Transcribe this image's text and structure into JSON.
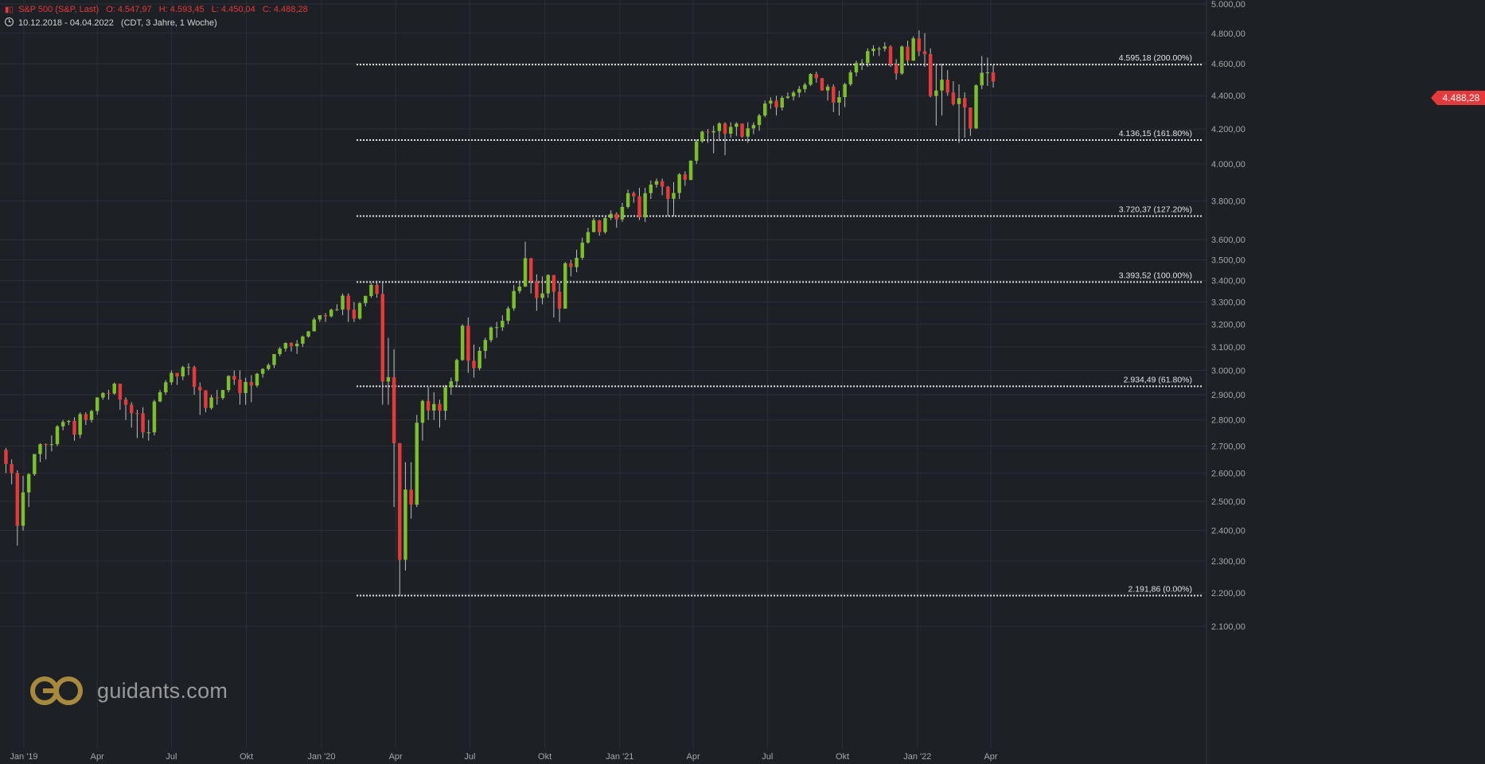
{
  "header": {
    "instrument": "S&P 500 (S&P, Last)",
    "open": "O: 4.547,97",
    "high": "H: 4.593,45",
    "low": "L: 4.450,04",
    "close": "C: 4.488,28",
    "range": "10.12.2018 - 04.04.2022",
    "settings": "(CDT, 3 Jahre, 1 Woche)"
  },
  "logo": {
    "text": "guidants.com"
  },
  "current_price": "4.488,28",
  "colors": {
    "up": "#7cbf2c",
    "down": "#e5393b",
    "background": "#1d2025",
    "grid": "#2c3036",
    "text": "#a6a6a6"
  },
  "chart_data": {
    "type": "candlestick",
    "title": "S&P 500 (S&P, Last)",
    "x_start": "2018-12-10",
    "x_end": "2022-04-04",
    "interval": "1 Woche",
    "yscale": "log",
    "ylim": [
      2100,
      5000
    ],
    "yticks": [
      2100,
      2200,
      2300,
      2400,
      2500,
      2600,
      2700,
      2800,
      2900,
      3000,
      3100,
      3200,
      3300,
      3400,
      3500,
      3600,
      3800,
      4000,
      4200,
      4400,
      4600,
      4800,
      5000
    ],
    "ytick_labels": [
      "2.100,00",
      "2.200,00",
      "2.300,00",
      "2.400,00",
      "2.500,00",
      "2.600,00",
      "2.700,00",
      "2.800,00",
      "2.900,00",
      "3.000,00",
      "3.100,00",
      "3.200,00",
      "3.300,00",
      "3.400,00",
      "3.500,00",
      "3.600,00",
      "3.800,00",
      "4.000,00",
      "4.200,00",
      "4.400,00",
      "4.600,00",
      "4.800,00",
      "5.000,00"
    ],
    "xticks": [
      "Jan '19",
      "Apr",
      "Jul",
      "Okt",
      "Jan '20",
      "Apr",
      "Jul",
      "Okt",
      "Jan '21",
      "Apr",
      "Jul",
      "Okt",
      "Jan '22",
      "Apr"
    ],
    "xtick_dates": [
      "2019-01-01",
      "2019-04-01",
      "2019-07-01",
      "2019-10-01",
      "2020-01-01",
      "2020-04-01",
      "2020-07-01",
      "2020-10-01",
      "2021-01-01",
      "2021-04-01",
      "2021-07-01",
      "2021-10-01",
      "2022-01-01",
      "2022-04-01"
    ],
    "fib_levels": [
      {
        "value": 4595.18,
        "label": "4.595,18 (200.00%)"
      },
      {
        "value": 4136.15,
        "label": "4.136,15 (161.80%)"
      },
      {
        "value": 3720.37,
        "label": "3.720,37 (127.20%)"
      },
      {
        "value": 3393.52,
        "label": "3.393,52 (100.00%)"
      },
      {
        "value": 2934.49,
        "label": "2.934,49 (61.80%)"
      },
      {
        "value": 2191.86,
        "label": "2.191,86 (0.00%)"
      }
    ],
    "fib_start_date": "2020-02-17",
    "closes": [
      2633,
      2600,
      2416,
      2531,
      2596,
      2670,
      2707,
      2706,
      2707,
      2775,
      2792,
      2796,
      2743,
      2823,
      2800,
      2835,
      2889,
      2907,
      2905,
      2945,
      2881,
      2860,
      2827,
      2826,
      2752,
      2752,
      2873,
      2910,
      2951,
      2990,
      2975,
      3014,
      3014,
      2932,
      2918,
      2847,
      2889,
      2887,
      2919,
      2977,
      2962,
      2907,
      2952,
      2938,
      2986,
      3006,
      3023,
      3069,
      3093,
      3117,
      3103,
      3114,
      3145,
      3168,
      3221,
      3240,
      3235,
      3265,
      3266,
      3330,
      3265,
      3225,
      3295,
      3328,
      3380,
      3338,
      2954,
      2972,
      2711,
      2304,
      2541,
      2488,
      2789,
      2875,
      2837,
      2863,
      2836,
      2930,
      2955,
      3044,
      3193,
      3041,
      3009,
      3083,
      3130,
      3185,
      3186,
      3215,
      3271,
      3351,
      3372,
      3508,
      3397,
      3319,
      3340,
      3427,
      3348,
      3270,
      3483,
      3465,
      3510,
      3585,
      3638,
      3699,
      3638,
      3710,
      3732,
      3703,
      3768,
      3841,
      3824,
      3714,
      3841,
      3887,
      3906,
      3876,
      3811,
      3842,
      3943,
      3913,
      4019,
      4128,
      4185,
      4180,
      4188,
      4233,
      4173,
      4213,
      4232,
      4156,
      4204,
      4224,
      4280,
      4352,
      4370,
      4328,
      4387,
      4395,
      4419,
      4441,
      4468,
      4535,
      4509,
      4432,
      4456,
      4358,
      4391,
      4471,
      4545,
      4605,
      4605,
      4682,
      4698,
      4698,
      4712,
      4595,
      4538,
      4712,
      4620,
      4766,
      4681,
      4663,
      4398,
      4432,
      4500,
      4419,
      4349,
      4385,
      4328,
      4204,
      4464,
      4543,
      4545,
      4488
    ],
    "highs": [
      2693,
      2650,
      2610,
      2590,
      2600,
      2670,
      2710,
      2710,
      2740,
      2780,
      2800,
      2800,
      2810,
      2830,
      2830,
      2840,
      2890,
      2910,
      2920,
      2950,
      2930,
      2890,
      2870,
      2840,
      2850,
      2800,
      2880,
      2920,
      2960,
      3000,
      2990,
      3020,
      3030,
      3020,
      2950,
      2890,
      2900,
      2920,
      2920,
      2980,
      3000,
      3000,
      2970,
      2980,
      2990,
      3010,
      3030,
      3070,
      3100,
      3120,
      3120,
      3130,
      3150,
      3170,
      3230,
      3240,
      3250,
      3270,
      3290,
      3340,
      3340,
      3300,
      3300,
      3330,
      3390,
      3400,
      3390,
      3140,
      3090,
      2700,
      2640,
      2640,
      2820,
      2880,
      2930,
      2910,
      2880,
      2940,
      2970,
      3050,
      3200,
      3230,
      3110,
      3100,
      3140,
      3190,
      3210,
      3240,
      3280,
      3380,
      3400,
      3590,
      3510,
      3430,
      3420,
      3430,
      3420,
      3390,
      3490,
      3500,
      3550,
      3610,
      3660,
      3710,
      3700,
      3720,
      3750,
      3740,
      3790,
      3860,
      3850,
      3870,
      3870,
      3910,
      3920,
      3920,
      3880,
      3900,
      3950,
      3960,
      4020,
      4140,
      4190,
      4200,
      4220,
      4240,
      4240,
      4240,
      4240,
      4230,
      4240,
      4240,
      4290,
      4370,
      4390,
      4400,
      4400,
      4420,
      4430,
      4460,
      4480,
      4540,
      4550,
      4500,
      4470,
      4470,
      4430,
      4480,
      4560,
      4620,
      4630,
      4700,
      4720,
      4710,
      4740,
      4720,
      4630,
      4720,
      4750,
      4780,
      4820,
      4800,
      4700,
      4600,
      4600,
      4560,
      4490,
      4470,
      4420,
      4300,
      4470,
      4650,
      4640,
      4590
    ],
    "lows": [
      2600,
      2560,
      2350,
      2400,
      2480,
      2590,
      2640,
      2650,
      2680,
      2700,
      2760,
      2780,
      2720,
      2730,
      2780,
      2790,
      2820,
      2880,
      2880,
      2900,
      2840,
      2800,
      2770,
      2730,
      2730,
      2720,
      2740,
      2870,
      2900,
      2940,
      2940,
      2960,
      2980,
      2900,
      2820,
      2830,
      2840,
      2860,
      2880,
      2910,
      2940,
      2860,
      2860,
      2870,
      2930,
      2970,
      3000,
      3010,
      3060,
      3080,
      3080,
      3070,
      3100,
      3140,
      3170,
      3210,
      3210,
      3230,
      3260,
      3240,
      3210,
      3210,
      3220,
      3280,
      3320,
      3320,
      2860,
      2860,
      2480,
      2190,
      2270,
      2440,
      2480,
      2720,
      2800,
      2800,
      2770,
      2800,
      2900,
      2930,
      3040,
      2990,
      2970,
      3000,
      3050,
      3120,
      3140,
      3170,
      3200,
      3260,
      3340,
      3370,
      3340,
      3260,
      3290,
      3320,
      3230,
      3210,
      3280,
      3420,
      3440,
      3500,
      3580,
      3640,
      3620,
      3630,
      3700,
      3660,
      3690,
      3760,
      3790,
      3700,
      3690,
      3810,
      3870,
      3830,
      3720,
      3720,
      3810,
      3880,
      3910,
      4000,
      4120,
      4120,
      4060,
      4130,
      4050,
      4150,
      4160,
      4150,
      4120,
      4170,
      4190,
      4270,
      4320,
      4280,
      4310,
      4380,
      4370,
      4390,
      4420,
      4460,
      4480,
      4430,
      4370,
      4300,
      4280,
      4330,
      4460,
      4520,
      4560,
      4580,
      4650,
      4650,
      4680,
      4580,
      4500,
      4530,
      4600,
      4620,
      4650,
      4580,
      4390,
      4220,
      4280,
      4400,
      4340,
      4120,
      4150,
      4160,
      4200,
      4440,
      4460,
      4450
    ]
  }
}
